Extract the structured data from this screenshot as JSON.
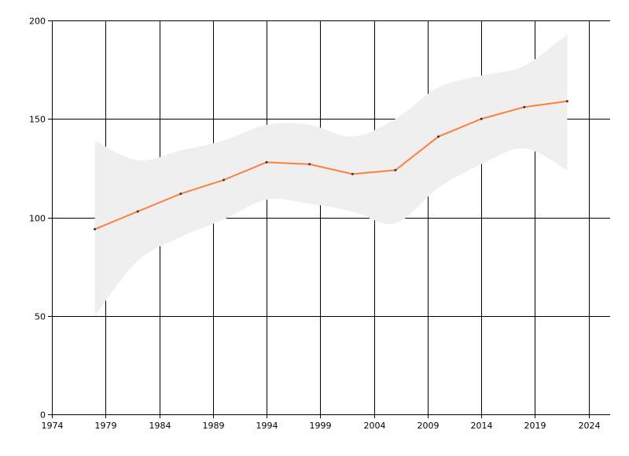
{
  "chart_data": {
    "type": "line",
    "title": "",
    "xlabel": "",
    "ylabel": "",
    "xlim": [
      1974,
      2026
    ],
    "ylim": [
      0,
      200
    ],
    "grid": true,
    "x_ticks": [
      1974,
      1979,
      1984,
      1989,
      1994,
      1999,
      2004,
      2009,
      2014,
      2019,
      2024
    ],
    "y_ticks": [
      0,
      50,
      100,
      150,
      200
    ],
    "x_tick_labels": [
      "1974",
      "1979",
      "1984",
      "1989",
      "1994",
      "1999",
      "2004",
      "2009",
      "2014",
      "2019",
      "2024"
    ],
    "y_tick_labels": [
      "0",
      "50",
      "100",
      "150",
      "200"
    ],
    "series": [
      {
        "color": "#ff7f3f",
        "marker_color": "#333333",
        "x": [
          1978,
          1982,
          1986,
          1990,
          1994,
          1998,
          2002,
          2006,
          2010,
          2014,
          2018,
          2022
        ],
        "y": [
          94,
          103,
          112,
          119,
          128,
          127,
          122,
          124,
          141,
          150,
          156,
          159
        ]
      }
    ],
    "band": {
      "color": "#efefef",
      "x": [
        1978,
        1982,
        1986,
        1990,
        1994,
        1998,
        2002,
        2006,
        2010,
        2014,
        2018,
        2022
      ],
      "upper": [
        139,
        129,
        134,
        139,
        147,
        147,
        141,
        150,
        166,
        172,
        177,
        193
      ],
      "lower": [
        50,
        78,
        90,
        99,
        109,
        107,
        103,
        97,
        115,
        127,
        135,
        124
      ]
    }
  }
}
